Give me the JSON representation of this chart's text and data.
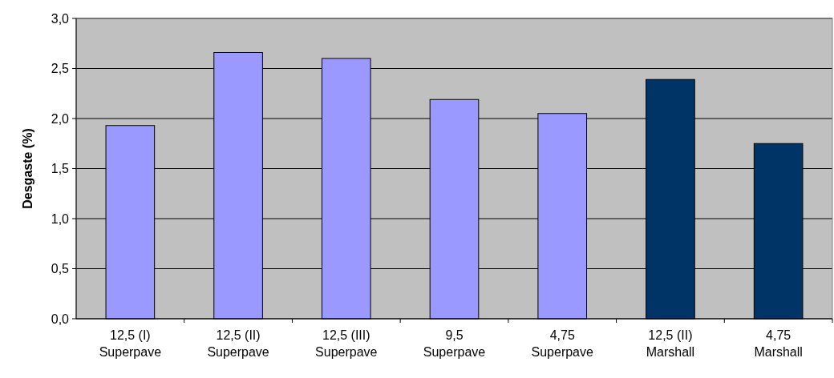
{
  "chart_data": {
    "type": "bar",
    "ylabel": "Desgaste (%)",
    "categories": [
      "12,5 (I)\nSuperpave",
      "12,5 (II)\nSuperpave",
      "12,5 (III)\nSuperpave",
      "9,5\nSuperpave",
      "4,75\nSuperpave",
      "12,5 (II)\nMarshall",
      "4,75\nMarshall"
    ],
    "values": [
      1.93,
      2.66,
      2.6,
      2.19,
      2.05,
      2.39,
      1.75
    ],
    "colors": [
      "#9999ff",
      "#9999ff",
      "#9999ff",
      "#9999ff",
      "#9999ff",
      "#003366",
      "#003366"
    ],
    "ylim": [
      0,
      3
    ],
    "yticks": [
      {
        "value": 0,
        "label": "0,0"
      },
      {
        "value": 0.5,
        "label": "0,5"
      },
      {
        "value": 1,
        "label": "1,0"
      },
      {
        "value": 1.5,
        "label": "1,5"
      },
      {
        "value": 2,
        "label": "2,0"
      },
      {
        "value": 2.5,
        "label": "2,5"
      },
      {
        "value": 3,
        "label": "3,0"
      }
    ],
    "grid": "y"
  }
}
